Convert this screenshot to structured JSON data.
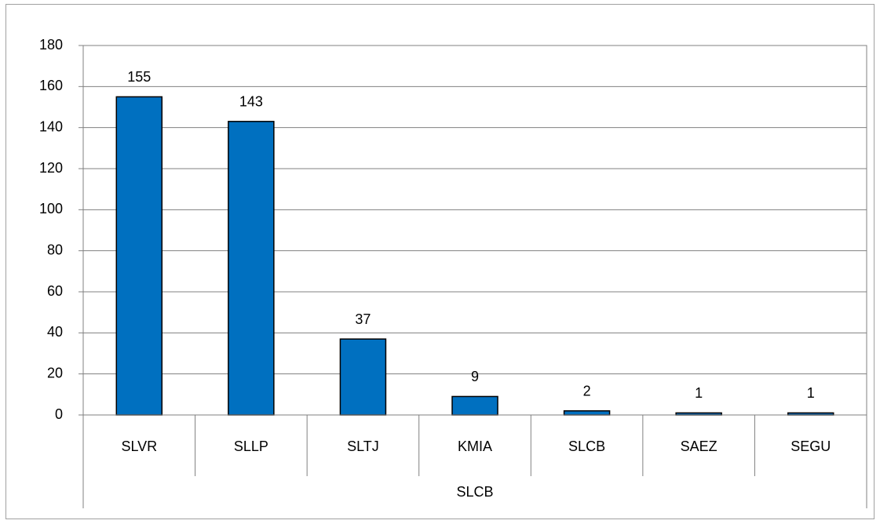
{
  "chart_data": {
    "type": "bar",
    "categories": [
      "SLVR",
      "SLLP",
      "SLTJ",
      "KMIA",
      "SLCB",
      "SAEZ",
      "SEGU"
    ],
    "category_group": "SLCB",
    "values": [
      155,
      143,
      37,
      9,
      2,
      1,
      1
    ],
    "color": "#0070c0",
    "ylim": [
      0,
      180
    ],
    "yticks": [
      0,
      20,
      40,
      60,
      80,
      100,
      120,
      140,
      160,
      180
    ],
    "grid": true
  }
}
